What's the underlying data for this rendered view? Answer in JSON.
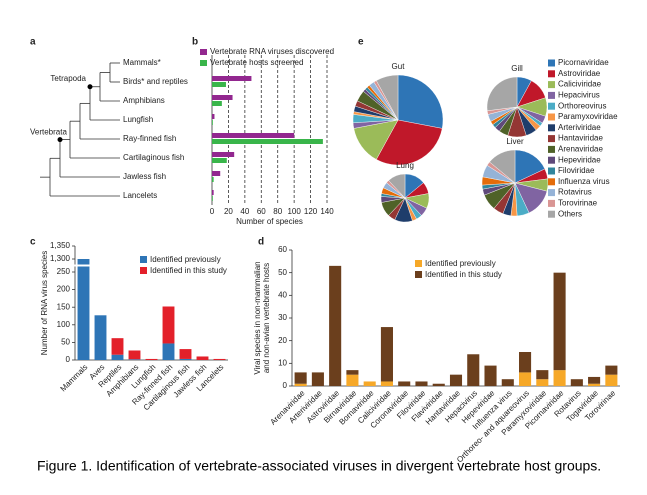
{
  "caption": "Figure 1. Identification of vertebrate-associated viruses in divergent vertebrate host groups.",
  "tree": {
    "panel": "a",
    "clades": [
      "Tetrapoda",
      "Vertebrata"
    ]
  },
  "chart_data": [
    {
      "type": "bar",
      "panel": "b",
      "orientation": "horizontal",
      "categories": [
        "Mammals*",
        "Birds* and reptiles",
        "Amphibians",
        "Lungfish",
        "Ray-finned fish",
        "Cartilaginous fish",
        "Jawless fish",
        "Lancelets"
      ],
      "series": [
        {
          "name": "Vertebrate RNA viruses discovered",
          "color": "#92278f",
          "values": [
            null,
            48,
            25,
            3,
            100,
            27,
            10,
            2
          ]
        },
        {
          "name": "Vertebrate hosts screened",
          "color": "#39b54a",
          "values": [
            null,
            17,
            12,
            1,
            135,
            18,
            2,
            1
          ]
        }
      ],
      "xlabel": "Number of species",
      "xlim": [
        0,
        140
      ],
      "xticks": [
        0,
        20,
        40,
        60,
        80,
        100,
        120,
        140
      ],
      "grid": true
    },
    {
      "type": "bar",
      "panel": "c",
      "stacked": true,
      "categories": [
        "Mammals",
        "Aves",
        "Reptiles",
        "Amphibians",
        "Lungfish",
        "Ray-finned fish",
        "Cartilaginous fish",
        "Jawless fish",
        "Lancelets"
      ],
      "series": [
        {
          "name": "Identified previously",
          "color": "#2e75b6",
          "values": [
            1300,
            127,
            15,
            2,
            0,
            47,
            3,
            0,
            0
          ]
        },
        {
          "name": "Identified in this study",
          "color": "#e3202a",
          "values": [
            0,
            0,
            47,
            25,
            3,
            105,
            28,
            10,
            3
          ]
        }
      ],
      "ylabel": [
        "Number of RNA virus species"
      ],
      "ylim": [
        0,
        1350
      ],
      "ybreak": [
        250,
        1300
      ],
      "yticks": [
        0,
        50,
        100,
        150,
        200,
        250,
        {
          "value": 1300,
          "label": "1,300"
        },
        {
          "value": 1350,
          "label": "1,350"
        }
      ]
    },
    {
      "type": "bar",
      "panel": "d",
      "stacked": true,
      "categories": [
        "Arenaviridae",
        "Arteriviridae",
        "Astroviridae",
        "Birnaviridae",
        "Bornaviridae",
        "Caliciviridae",
        "Coronaviridae",
        "Filoviridae",
        "Flaviviridae",
        "Hantaviridae",
        "Hepacivirus",
        "Hepeviridae",
        "Influenza virus",
        "Orthoreo- and aquareovirus",
        "Paramyxoviridae",
        "Picornaviridae",
        "Rotavirus",
        "Togaviridae",
        "Torovirinae"
      ],
      "series": [
        {
          "name": "Identified previously",
          "color": "#f6a828",
          "values": [
            1,
            0,
            0,
            5,
            2,
            2,
            0,
            0,
            0,
            0,
            0,
            0,
            0,
            6,
            3,
            7,
            0,
            1,
            5
          ]
        },
        {
          "name": "Identified in this study",
          "color": "#6b3f1d",
          "values": [
            5,
            6,
            53,
            2,
            0,
            24,
            2,
            2,
            1,
            5,
            14,
            9,
            3,
            9,
            4,
            43,
            3,
            3,
            4
          ]
        }
      ],
      "ylabel": [
        "Viral species in non-mammalian",
        "and non-avian vertebrate hosts"
      ],
      "ylim": [
        0,
        60
      ],
      "yticks": [
        0,
        10,
        20,
        30,
        40,
        50,
        60
      ]
    },
    {
      "type": "pie",
      "panel": "e",
      "labels": [
        "Picornaviridae",
        "Astroviridae",
        "Caliciviridae",
        "Hepacivirus",
        "Orthoreovirus",
        "Paramyxoviridae",
        "Arteriviridae",
        "Hantaviridae",
        "Arenaviridae",
        "Hepeviridae",
        "Filoviridae",
        "Influenza virus",
        "Rotavirus",
        "Torovirinae",
        "Others"
      ],
      "colors": [
        "#2e75b6",
        "#c0182a",
        "#9bbb59",
        "#8064a2",
        "#4bacc6",
        "#f79646",
        "#1f3d6b",
        "#943634",
        "#4f6228",
        "#5f497a",
        "#31859c",
        "#e46c0a",
        "#95b3d7",
        "#d99694",
        "#a6a6a6"
      ],
      "pies": [
        {
          "name": "Gut",
          "values": [
            28,
            30,
            14,
            2,
            3,
            1,
            2,
            2,
            4,
            1,
            1,
            1,
            2,
            1,
            8
          ]
        },
        {
          "name": "Gill",
          "values": [
            8,
            12,
            10,
            4,
            2,
            3,
            6,
            10,
            5,
            3,
            2,
            2,
            4,
            2,
            27
          ]
        },
        {
          "name": "Lung",
          "values": [
            14,
            8,
            10,
            6,
            4,
            3,
            12,
            5,
            10,
            4,
            2,
            4,
            4,
            2,
            12
          ]
        },
        {
          "name": "Liver",
          "values": [
            18,
            5,
            6,
            14,
            6,
            3,
            4,
            5,
            8,
            3,
            2,
            4,
            6,
            2,
            14
          ]
        }
      ]
    }
  ]
}
